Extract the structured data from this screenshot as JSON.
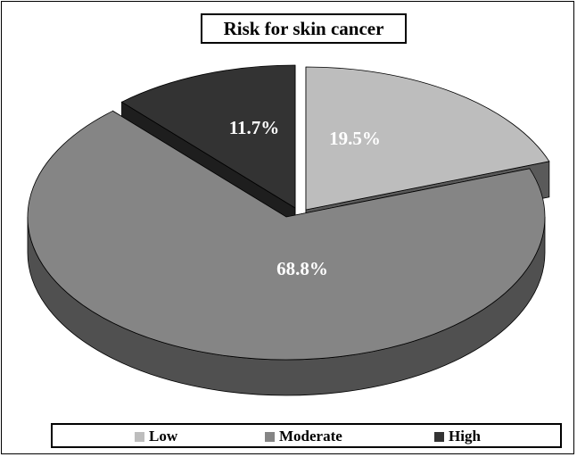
{
  "chart_data": {
    "type": "pie",
    "title": "Risk for skin cancer",
    "categories": [
      "Low",
      "Moderate",
      "High"
    ],
    "values": [
      19.5,
      68.8,
      11.7
    ],
    "labels": [
      "19.5%",
      "68.8%",
      "11.7%"
    ],
    "colors": [
      "#bdbdbd",
      "#858585",
      "#333333"
    ],
    "legend_position": "bottom",
    "style": "3d-exploded"
  }
}
